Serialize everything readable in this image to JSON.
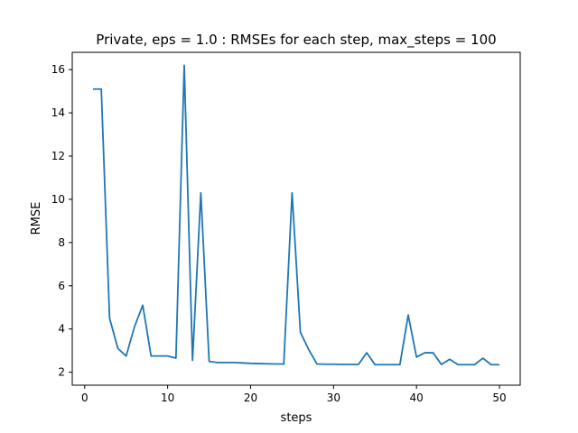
{
  "chart_data": {
    "type": "line",
    "title": "Private, eps = 1.0 : RMSEs for each step, max_steps = 100",
    "xlabel": "steps",
    "ylabel": "RMSE",
    "xlim": [
      -1.5,
      52.5
    ],
    "ylim": [
      1.4,
      16.8
    ],
    "xticks": [
      0,
      10,
      20,
      30,
      40,
      50
    ],
    "yticks": [
      2,
      4,
      6,
      8,
      10,
      12,
      14,
      16
    ],
    "grid": false,
    "series": [
      {
        "color": "#1f77b4",
        "x": [
          1,
          2,
          3,
          4,
          5,
          6,
          7,
          8,
          9,
          10,
          11,
          12,
          13,
          14,
          15,
          16,
          17,
          18,
          19,
          20,
          21,
          22,
          23,
          24,
          25,
          26,
          27,
          28,
          29,
          30,
          31,
          32,
          33,
          34,
          35,
          36,
          37,
          38,
          39,
          40,
          41,
          42,
          43,
          44,
          45,
          46,
          47,
          48,
          49,
          50
        ],
        "y": [
          15.1,
          15.1,
          4.5,
          3.1,
          2.75,
          4.1,
          5.1,
          2.75,
          2.75,
          2.75,
          2.65,
          16.2,
          2.55,
          10.3,
          2.5,
          2.45,
          2.45,
          2.45,
          2.43,
          2.41,
          2.4,
          2.39,
          2.38,
          2.38,
          10.3,
          3.85,
          3.05,
          2.38,
          2.37,
          2.37,
          2.36,
          2.36,
          2.36,
          2.9,
          2.35,
          2.35,
          2.35,
          2.35,
          4.65,
          2.7,
          2.9,
          2.9,
          2.36,
          2.6,
          2.35,
          2.35,
          2.35,
          2.65,
          2.35,
          2.35
        ]
      }
    ]
  }
}
